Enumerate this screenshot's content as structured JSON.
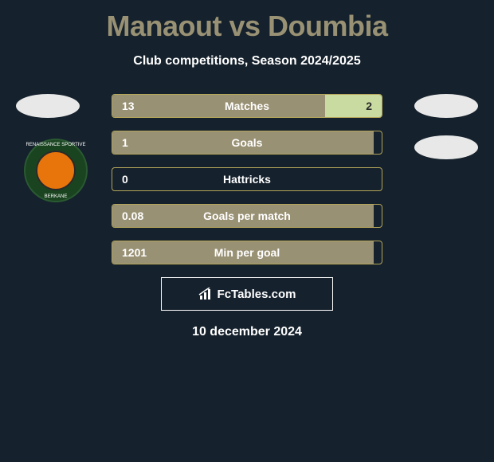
{
  "header": {
    "title": "Manaout vs Doumbia",
    "subtitle": "Club competitions, Season 2024/2025"
  },
  "colors": {
    "background": "#15212c",
    "title_color": "#999174",
    "text_color": "#ffffff",
    "fill_left": "#999174",
    "fill_right": "#c9dba0",
    "border": "#b4a65a",
    "badge_outer": "#1a4420",
    "badge_inner": "#e8750b"
  },
  "badge": {
    "text_top": "RENAISSANCE SPORTIVE",
    "text_bottom": "BERKANE"
  },
  "stats": [
    {
      "label": "Matches",
      "left_value": "13",
      "right_value": "2",
      "left_pct": 79,
      "right_pct": 21,
      "show_right": true
    },
    {
      "label": "Goals",
      "left_value": "1",
      "right_value": "",
      "left_pct": 97,
      "right_pct": 0,
      "show_right": false
    },
    {
      "label": "Hattricks",
      "left_value": "0",
      "right_value": "",
      "left_pct": 0,
      "right_pct": 0,
      "show_right": false
    },
    {
      "label": "Goals per match",
      "left_value": "0.08",
      "right_value": "",
      "left_pct": 97,
      "right_pct": 0,
      "show_right": false
    },
    {
      "label": "Min per goal",
      "left_value": "1201",
      "right_value": "",
      "left_pct": 97,
      "right_pct": 0,
      "show_right": false
    }
  ],
  "footer": {
    "brand": "FcTables.com",
    "date": "10 december 2024"
  }
}
